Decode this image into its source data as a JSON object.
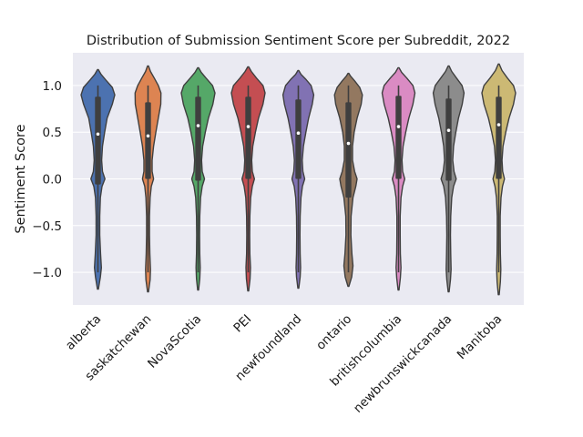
{
  "chart_data": {
    "type": "violin",
    "title": "Distribution of Submission Sentiment Score per Subreddit, 2022",
    "xlabel": "",
    "ylabel": "Sentiment Score",
    "ylim": [
      -1.35,
      1.35
    ],
    "yticks": [
      1.0,
      0.5,
      0.0,
      -0.5,
      -1.0
    ],
    "ytick_labels": [
      "1.0",
      "0.5",
      "0.0",
      "−0.5",
      "−1.0"
    ],
    "grid": true,
    "background": "#eaeaf2",
    "categories": [
      "alberta",
      "saskatchewan",
      "NovaScotia",
      "PEI",
      "newfoundland",
      "ontario",
      "britishcolumbia",
      "newbrunswickcanada",
      "Manitoba"
    ],
    "colors": [
      "#4c72b0",
      "#dd8452",
      "#55a868",
      "#c44e52",
      "#8172b3",
      "#937860",
      "#da8bc3",
      "#8c8c8c",
      "#ccb974"
    ],
    "series": [
      {
        "category": "alberta",
        "min": -1.18,
        "max": 1.17,
        "q1": -0.06,
        "median": 0.48,
        "q3": 0.88,
        "whisker_low": -1.0,
        "whisker_high": 1.0,
        "density": [
          [
            -1.18,
            0.02
          ],
          [
            -1.05,
            0.12
          ],
          [
            -0.95,
            0.17
          ],
          [
            -0.8,
            0.13
          ],
          [
            -0.6,
            0.09
          ],
          [
            -0.4,
            0.09
          ],
          [
            -0.2,
            0.12
          ],
          [
            -0.08,
            0.2
          ],
          [
            0.0,
            0.34
          ],
          [
            0.08,
            0.22
          ],
          [
            0.2,
            0.18
          ],
          [
            0.35,
            0.22
          ],
          [
            0.5,
            0.33
          ],
          [
            0.65,
            0.45
          ],
          [
            0.8,
            0.7
          ],
          [
            0.9,
            0.82
          ],
          [
            0.98,
            0.7
          ],
          [
            1.06,
            0.38
          ],
          [
            1.12,
            0.15
          ],
          [
            1.17,
            0.02
          ]
        ]
      },
      {
        "category": "saskatchewan",
        "min": -1.21,
        "max": 1.21,
        "q1": 0.0,
        "median": 0.46,
        "q3": 0.82,
        "whisker_low": -1.0,
        "whisker_high": 1.0,
        "density": [
          [
            -1.21,
            0.02
          ],
          [
            -1.08,
            0.1
          ],
          [
            -0.97,
            0.12
          ],
          [
            -0.8,
            0.09
          ],
          [
            -0.6,
            0.07
          ],
          [
            -0.4,
            0.07
          ],
          [
            -0.2,
            0.1
          ],
          [
            -0.08,
            0.16
          ],
          [
            0.0,
            0.27
          ],
          [
            0.08,
            0.2
          ],
          [
            0.2,
            0.2
          ],
          [
            0.35,
            0.27
          ],
          [
            0.5,
            0.38
          ],
          [
            0.65,
            0.5
          ],
          [
            0.8,
            0.62
          ],
          [
            0.92,
            0.63
          ],
          [
            1.0,
            0.5
          ],
          [
            1.08,
            0.3
          ],
          [
            1.15,
            0.12
          ],
          [
            1.21,
            0.02
          ]
        ]
      },
      {
        "category": "NovaScotia",
        "min": -1.19,
        "max": 1.19,
        "q1": -0.02,
        "median": 0.57,
        "q3": 0.88,
        "whisker_low": -1.0,
        "whisker_high": 1.0,
        "density": [
          [
            -1.19,
            0.02
          ],
          [
            -1.07,
            0.08
          ],
          [
            -0.95,
            0.1
          ],
          [
            -0.8,
            0.08
          ],
          [
            -0.6,
            0.07
          ],
          [
            -0.4,
            0.08
          ],
          [
            -0.2,
            0.12
          ],
          [
            -0.08,
            0.2
          ],
          [
            0.0,
            0.31
          ],
          [
            0.08,
            0.2
          ],
          [
            0.2,
            0.17
          ],
          [
            0.35,
            0.22
          ],
          [
            0.5,
            0.35
          ],
          [
            0.65,
            0.5
          ],
          [
            0.8,
            0.72
          ],
          [
            0.92,
            0.82
          ],
          [
            1.0,
            0.7
          ],
          [
            1.08,
            0.38
          ],
          [
            1.14,
            0.15
          ],
          [
            1.19,
            0.02
          ]
        ]
      },
      {
        "category": "PEI",
        "min": -1.2,
        "max": 1.2,
        "q1": 0.0,
        "median": 0.56,
        "q3": 0.88,
        "whisker_low": -1.0,
        "whisker_high": 1.0,
        "density": [
          [
            -1.2,
            0.02
          ],
          [
            -1.07,
            0.09
          ],
          [
            -0.95,
            0.11
          ],
          [
            -0.8,
            0.08
          ],
          [
            -0.6,
            0.07
          ],
          [
            -0.4,
            0.08
          ],
          [
            -0.2,
            0.12
          ],
          [
            -0.08,
            0.2
          ],
          [
            0.0,
            0.3
          ],
          [
            0.08,
            0.2
          ],
          [
            0.2,
            0.17
          ],
          [
            0.35,
            0.22
          ],
          [
            0.5,
            0.35
          ],
          [
            0.65,
            0.5
          ],
          [
            0.8,
            0.72
          ],
          [
            0.92,
            0.82
          ],
          [
            1.0,
            0.72
          ],
          [
            1.08,
            0.4
          ],
          [
            1.15,
            0.15
          ],
          [
            1.2,
            0.02
          ]
        ]
      },
      {
        "category": "newfoundland",
        "min": -1.17,
        "max": 1.16,
        "q1": 0.0,
        "median": 0.49,
        "q3": 0.85,
        "whisker_low": -1.0,
        "whisker_high": 1.0,
        "density": [
          [
            -1.17,
            0.02
          ],
          [
            -1.05,
            0.09
          ],
          [
            -0.95,
            0.11
          ],
          [
            -0.8,
            0.09
          ],
          [
            -0.6,
            0.08
          ],
          [
            -0.4,
            0.09
          ],
          [
            -0.2,
            0.13
          ],
          [
            -0.08,
            0.2
          ],
          [
            0.0,
            0.31
          ],
          [
            0.08,
            0.22
          ],
          [
            0.2,
            0.19
          ],
          [
            0.35,
            0.25
          ],
          [
            0.5,
            0.37
          ],
          [
            0.65,
            0.5
          ],
          [
            0.8,
            0.68
          ],
          [
            0.9,
            0.75
          ],
          [
            1.0,
            0.62
          ],
          [
            1.07,
            0.35
          ],
          [
            1.12,
            0.13
          ],
          [
            1.16,
            0.02
          ]
        ]
      },
      {
        "category": "ontario",
        "min": -1.15,
        "max": 1.13,
        "q1": -0.2,
        "median": 0.38,
        "q3": 0.82,
        "whisker_low": -1.0,
        "whisker_high": 1.0,
        "density": [
          [
            -1.15,
            0.02
          ],
          [
            -1.05,
            0.16
          ],
          [
            -0.93,
            0.22
          ],
          [
            -0.8,
            0.17
          ],
          [
            -0.6,
            0.12
          ],
          [
            -0.4,
            0.13
          ],
          [
            -0.2,
            0.22
          ],
          [
            -0.08,
            0.36
          ],
          [
            0.0,
            0.42
          ],
          [
            0.08,
            0.3
          ],
          [
            0.2,
            0.2
          ],
          [
            0.35,
            0.2
          ],
          [
            0.5,
            0.28
          ],
          [
            0.65,
            0.42
          ],
          [
            0.8,
            0.62
          ],
          [
            0.9,
            0.68
          ],
          [
            0.98,
            0.55
          ],
          [
            1.05,
            0.3
          ],
          [
            1.1,
            0.1
          ],
          [
            1.13,
            0.02
          ]
        ]
      },
      {
        "category": "britishcolumbia",
        "min": -1.19,
        "max": 1.19,
        "q1": 0.0,
        "median": 0.56,
        "q3": 0.89,
        "whisker_low": -1.0,
        "whisker_high": 1.0,
        "density": [
          [
            -1.19,
            0.02
          ],
          [
            -1.06,
            0.09
          ],
          [
            -0.95,
            0.12
          ],
          [
            -0.8,
            0.09
          ],
          [
            -0.6,
            0.08
          ],
          [
            -0.4,
            0.08
          ],
          [
            -0.2,
            0.12
          ],
          [
            -0.08,
            0.2
          ],
          [
            0.0,
            0.3
          ],
          [
            0.08,
            0.2
          ],
          [
            0.2,
            0.17
          ],
          [
            0.35,
            0.22
          ],
          [
            0.5,
            0.35
          ],
          [
            0.65,
            0.5
          ],
          [
            0.8,
            0.7
          ],
          [
            0.92,
            0.8
          ],
          [
            1.0,
            0.7
          ],
          [
            1.08,
            0.4
          ],
          [
            1.14,
            0.15
          ],
          [
            1.19,
            0.02
          ]
        ]
      },
      {
        "category": "newbrunswickcanada",
        "min": -1.21,
        "max": 1.21,
        "q1": -0.02,
        "median": 0.52,
        "q3": 0.86,
        "whisker_low": -1.0,
        "whisker_high": 1.0,
        "density": [
          [
            -1.21,
            0.02
          ],
          [
            -1.08,
            0.09
          ],
          [
            -0.97,
            0.12
          ],
          [
            -0.8,
            0.1
          ],
          [
            -0.6,
            0.09
          ],
          [
            -0.4,
            0.1
          ],
          [
            -0.2,
            0.15
          ],
          [
            -0.08,
            0.24
          ],
          [
            0.0,
            0.37
          ],
          [
            0.08,
            0.26
          ],
          [
            0.2,
            0.2
          ],
          [
            0.35,
            0.24
          ],
          [
            0.5,
            0.35
          ],
          [
            0.65,
            0.48
          ],
          [
            0.8,
            0.66
          ],
          [
            0.92,
            0.75
          ],
          [
            1.0,
            0.65
          ],
          [
            1.08,
            0.38
          ],
          [
            1.15,
            0.15
          ],
          [
            1.21,
            0.02
          ]
        ]
      },
      {
        "category": "Manitoba",
        "min": -1.24,
        "max": 1.23,
        "q1": 0.0,
        "median": 0.58,
        "q3": 0.88,
        "whisker_low": -1.0,
        "whisker_high": 1.0,
        "density": [
          [
            -1.24,
            0.02
          ],
          [
            -1.1,
            0.08
          ],
          [
            -0.97,
            0.1
          ],
          [
            -0.8,
            0.08
          ],
          [
            -0.6,
            0.07
          ],
          [
            -0.4,
            0.07
          ],
          [
            -0.2,
            0.11
          ],
          [
            -0.08,
            0.18
          ],
          [
            0.0,
            0.28
          ],
          [
            0.08,
            0.19
          ],
          [
            0.2,
            0.16
          ],
          [
            0.35,
            0.21
          ],
          [
            0.5,
            0.34
          ],
          [
            0.65,
            0.5
          ],
          [
            0.8,
            0.72
          ],
          [
            0.92,
            0.82
          ],
          [
            1.0,
            0.72
          ],
          [
            1.08,
            0.42
          ],
          [
            1.16,
            0.16
          ],
          [
            1.23,
            0.02
          ]
        ]
      }
    ]
  }
}
